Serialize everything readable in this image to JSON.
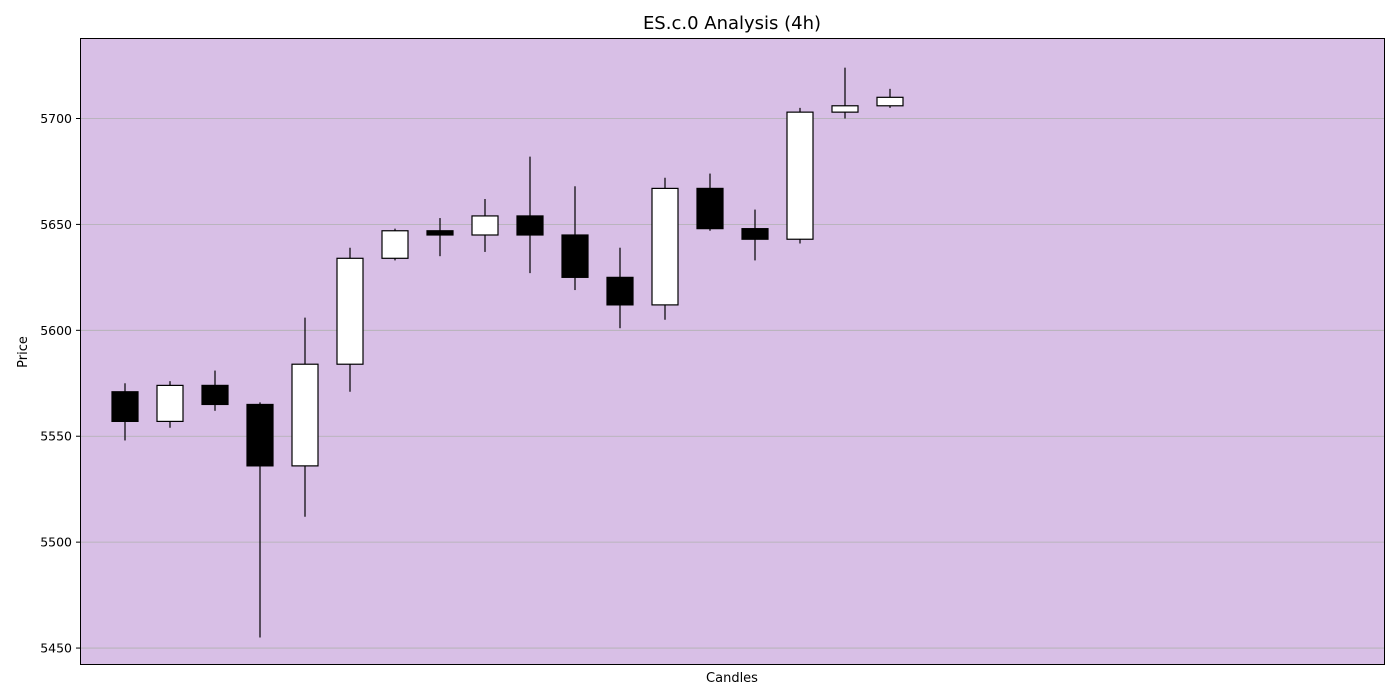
{
  "chart_data": {
    "type": "candlestick",
    "title": "ES.c.0 Analysis (4h)",
    "xlabel": "Candles",
    "ylabel": "Price",
    "ylim": [
      5442,
      5738
    ],
    "xlim": [
      -1,
      28
    ],
    "yticks": [
      5450,
      5500,
      5550,
      5600,
      5650,
      5700
    ],
    "grid": "horizontal",
    "plot_background": "#d8bfe6",
    "up_color": "#ffffff",
    "down_color": "#000000",
    "candles": [
      {
        "open": 5571,
        "high": 5575,
        "low": 5548,
        "close": 5557
      },
      {
        "open": 5557,
        "high": 5576,
        "low": 5554,
        "close": 5574
      },
      {
        "open": 5574,
        "high": 5581,
        "low": 5562,
        "close": 5565
      },
      {
        "open": 5565,
        "high": 5566,
        "low": 5455,
        "close": 5536
      },
      {
        "open": 5536,
        "high": 5606,
        "low": 5512,
        "close": 5584
      },
      {
        "open": 5584,
        "high": 5639,
        "low": 5571,
        "close": 5634
      },
      {
        "open": 5634,
        "high": 5648,
        "low": 5633,
        "close": 5647
      },
      {
        "open": 5647,
        "high": 5653,
        "low": 5635,
        "close": 5645
      },
      {
        "open": 5645,
        "high": 5662,
        "low": 5637,
        "close": 5654
      },
      {
        "open": 5654,
        "high": 5682,
        "low": 5627,
        "close": 5645
      },
      {
        "open": 5645,
        "high": 5668,
        "low": 5619,
        "close": 5625
      },
      {
        "open": 5625,
        "high": 5639,
        "low": 5601,
        "close": 5612
      },
      {
        "open": 5612,
        "high": 5672,
        "low": 5605,
        "close": 5667
      },
      {
        "open": 5667,
        "high": 5674,
        "low": 5647,
        "close": 5648
      },
      {
        "open": 5648,
        "high": 5657,
        "low": 5633,
        "close": 5643
      },
      {
        "open": 5643,
        "high": 5705,
        "low": 5641,
        "close": 5703
      },
      {
        "open": 5703,
        "high": 5724,
        "low": 5700,
        "close": 5706
      },
      {
        "open": 5706,
        "high": 5714,
        "low": 5705,
        "close": 5710
      }
    ]
  }
}
